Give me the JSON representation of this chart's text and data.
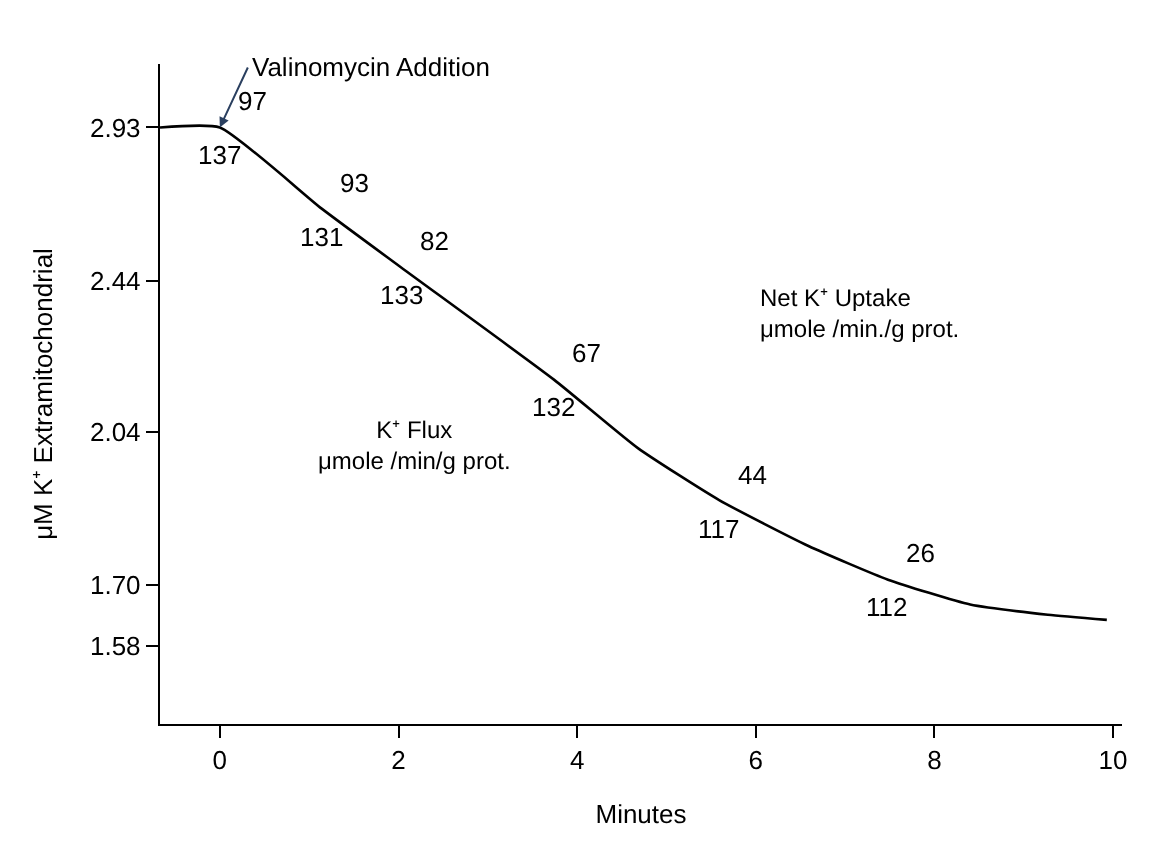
{
  "chart_data": {
    "type": "line",
    "xlabel": "Minutes",
    "ylabel": "μM K⁺ Extramitochondrial",
    "series": [
      {
        "color": "#000000",
        "x": [
          -0.67,
          0,
          1.14,
          2.03,
          3.74,
          4.68,
          5.59,
          6.59,
          7.48,
          8.4,
          9.27,
          9.93
        ],
        "values": [
          2.93,
          2.93,
          2.66,
          2.48,
          2.17,
          2.0,
          1.88,
          1.78,
          1.71,
          1.66,
          1.64,
          1.63
        ]
      }
    ],
    "log": "y",
    "xlim": [
      -0.67,
      10.1
    ],
    "xticks": [
      0,
      2,
      4,
      6,
      8,
      10
    ],
    "ylim": [
      1.44,
      3.16
    ],
    "yticks": [
      1.58,
      {
        "value": 1.7,
        "label": "1.70"
      },
      2.04,
      2.44,
      2.93
    ],
    "marker": "none",
    "line_style": "solid",
    "annotations": [
      {
        "text": "Valinomycin Addition",
        "x": 0,
        "y": 2.93
      },
      {
        "text": "97",
        "x": 0,
        "y": 2.93
      },
      {
        "text": "137",
        "x": 0,
        "y": 2.93
      },
      {
        "text": "93",
        "x": 1.14,
        "y": 2.66
      },
      {
        "text": "131",
        "x": 1.14,
        "y": 2.66
      },
      {
        "text": "82",
        "x": 2.03,
        "y": 2.48
      },
      {
        "text": "133",
        "x": 2.03,
        "y": 2.48
      },
      {
        "text": "67",
        "x": 3.74,
        "y": 2.17
      },
      {
        "text": "132",
        "x": 3.74,
        "y": 2.17
      },
      {
        "text": "44",
        "x": 5.59,
        "y": 1.88
      },
      {
        "text": "117",
        "x": 5.59,
        "y": 1.88
      },
      {
        "text": "26",
        "x": 7.48,
        "y": 1.71
      },
      {
        "text": "112",
        "x": 7.48,
        "y": 1.71
      },
      "K⁺ Flux\nμmole /min/g prot.",
      "Net K⁺ Uptake\nμmole /min./g prot."
    ]
  }
}
